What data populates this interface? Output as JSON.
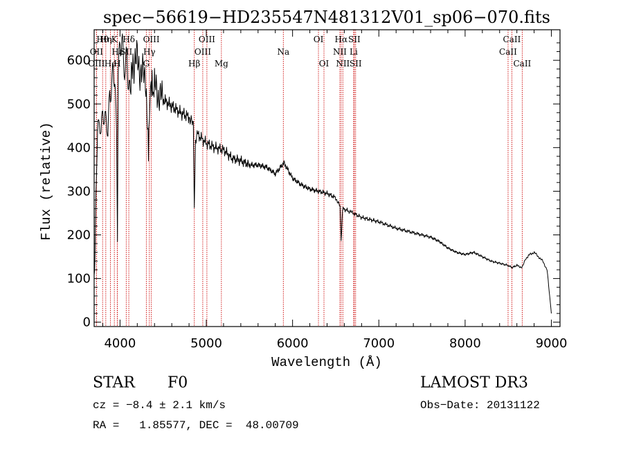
{
  "chart_data": {
    "type": "line",
    "title": "spec−56619−HD235547N481312V01_sp06−070.fits",
    "xlabel": "Wavelength (Å)",
    "ylabel": "Flux (relative)",
    "xlim": [
      3700,
      9100
    ],
    "ylim": [
      -10,
      670
    ],
    "xticks": [
      4000,
      5000,
      6000,
      7000,
      8000,
      9000
    ],
    "xtick_labels": [
      "4000",
      "5000",
      "6000",
      "7000",
      "8000",
      "9000"
    ],
    "yticks": [
      0,
      100,
      200,
      300,
      400,
      500,
      600
    ],
    "ytick_labels": [
      "0",
      "100",
      "200",
      "300",
      "400",
      "500",
      "600"
    ],
    "grid": false,
    "series": [
      {
        "name": "spectrum",
        "color": "#000000",
        "x": [
          3700,
          3710,
          3720,
          3740,
          3760,
          3780,
          3800,
          3820,
          3840,
          3860,
          3880,
          3900,
          3920,
          3940,
          3960,
          3970,
          3980,
          4000,
          4020,
          4040,
          4060,
          4080,
          4100,
          4120,
          4150,
          4200,
          4250,
          4300,
          4330,
          4340,
          4360,
          4400,
          4450,
          4500,
          4600,
          4700,
          4800,
          4850,
          4861,
          4875,
          4900,
          5000,
          5100,
          5200,
          5300,
          5400,
          5500,
          5600,
          5700,
          5800,
          5900,
          6000,
          6100,
          6200,
          6300,
          6400,
          6500,
          6550,
          6563,
          6580,
          6650,
          6700,
          6800,
          6900,
          7000,
          7200,
          7400,
          7600,
          7700,
          7800,
          7900,
          8000,
          8100,
          8200,
          8300,
          8400,
          8500,
          8542,
          8600,
          8662,
          8700,
          8750,
          8800,
          8850,
          8900,
          8950,
          9000
        ],
        "y": [
          100,
          150,
          300,
          420,
          480,
          430,
          520,
          460,
          500,
          420,
          540,
          500,
          580,
          520,
          430,
          200,
          560,
          640,
          660,
          620,
          600,
          630,
          550,
          520,
          600,
          600,
          570,
          560,
          370,
          500,
          530,
          540,
          520,
          510,
          495,
          480,
          470,
          450,
          260,
          420,
          430,
          410,
          400,
          395,
          375,
          370,
          360,
          360,
          355,
          340,
          365,
          330,
          315,
          305,
          300,
          295,
          285,
          265,
          185,
          260,
          255,
          250,
          240,
          235,
          230,
          215,
          205,
          195,
          185,
          170,
          160,
          155,
          160,
          150,
          140,
          135,
          130,
          125,
          130,
          125,
          145,
          155,
          160,
          150,
          140,
          120,
          20
        ]
      }
    ],
    "line_marker_color": "#cc0000",
    "line_markers": [
      {
        "label": "Hθ",
        "x": 3798,
        "row": 0
      },
      {
        "label": "OII",
        "x": 3727,
        "row": 1
      },
      {
        "label": "OIII",
        "x": 3727,
        "row": 2
      },
      {
        "label": "Hη",
        "x": 3835,
        "row": 0
      },
      {
        "label": "He",
        "x": 3889,
        "row": 2
      },
      {
        "label": "K",
        "x": 3934,
        "row": 0
      },
      {
        "label": "Hε",
        "x": 3970,
        "row": 1
      },
      {
        "label": "H",
        "x": 3968,
        "row": 2
      },
      {
        "label": "Hδ",
        "x": 4102,
        "row": 0
      },
      {
        "label": "SII",
        "x": 4072,
        "row": 1
      },
      {
        "label": "OIII",
        "x": 4363,
        "row": 0
      },
      {
        "label": "Hγ",
        "x": 4340,
        "row": 1
      },
      {
        "label": "G",
        "x": 4305,
        "row": 2
      },
      {
        "label": "Hβ",
        "x": 4861,
        "row": 2
      },
      {
        "label": "OIII",
        "x": 5007,
        "row": 0
      },
      {
        "label": "OIII",
        "x": 4959,
        "row": 1
      },
      {
        "label": "Mg",
        "x": 5175,
        "row": 2
      },
      {
        "label": "Na",
        "x": 5893,
        "row": 1
      },
      {
        "label": "OI",
        "x": 6300,
        "row": 0
      },
      {
        "label": "OI",
        "x": 6364,
        "row": 2
      },
      {
        "label": "Hα",
        "x": 6563,
        "row": 0
      },
      {
        "label": "NII",
        "x": 6548,
        "row": 1
      },
      {
        "label": "NII",
        "x": 6583,
        "row": 2
      },
      {
        "label": "SII",
        "x": 6716,
        "row": 0
      },
      {
        "label": "Li",
        "x": 6708,
        "row": 1
      },
      {
        "label": "SII",
        "x": 6731,
        "row": 2
      },
      {
        "label": "CaII",
        "x": 8542,
        "row": 0
      },
      {
        "label": "CaII",
        "x": 8498,
        "row": 1
      },
      {
        "label": "CaII",
        "x": 8662,
        "row": 2
      }
    ]
  },
  "footer": {
    "class_label": "STAR",
    "subclass_label": "F0",
    "survey_label": "LAMOST DR3",
    "velocity_text": "cz = −8.4 ± 2.1 km/s",
    "obs_date_text": "Obs−Date: 20131122",
    "coords_text": "RA =   1.85577, DEC =  48.00709"
  }
}
